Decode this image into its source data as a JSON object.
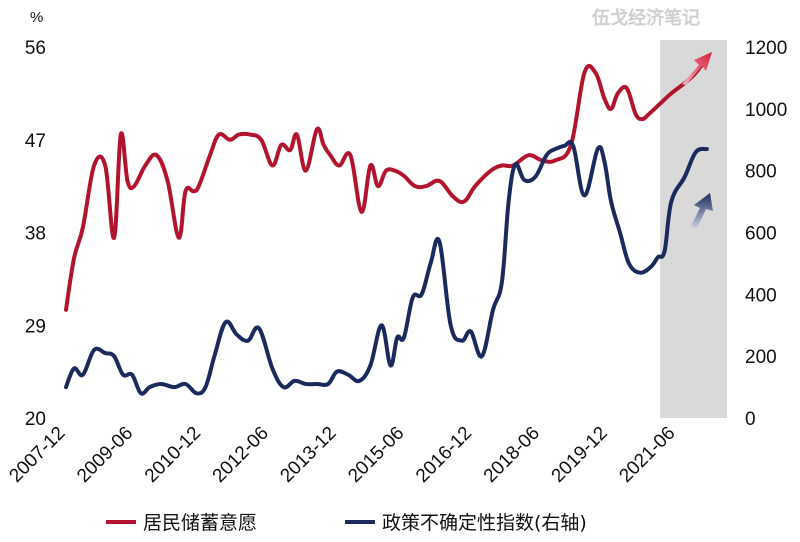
{
  "watermark": "伍戈经济笔记",
  "chart_data": {
    "type": "line",
    "left_axis": {
      "unit": "%",
      "ticks": [
        20,
        29,
        38,
        47,
        56
      ],
      "range": [
        20,
        56
      ]
    },
    "right_axis": {
      "ticks": [
        0,
        200,
        400,
        600,
        800,
        1000,
        1200
      ],
      "range": [
        0,
        1200
      ]
    },
    "x_ticks": [
      "2007-12",
      "2009-06",
      "2010-12",
      "2012-06",
      "2013-12",
      "2015-06",
      "2016-12",
      "2018-06",
      "2019-12",
      "2021-06"
    ],
    "x_range": [
      2007.92,
      2022.75
    ],
    "shaded_region": [
      2021.25,
      2022.75
    ],
    "series": [
      {
        "name": "居民储蓄意愿",
        "axis": "left",
        "color": "#b3142d",
        "x": [
          2007.92,
          2008.1,
          2008.3,
          2008.55,
          2008.8,
          2009.0,
          2009.15,
          2009.3,
          2009.45,
          2009.7,
          2009.95,
          2010.2,
          2010.45,
          2010.6,
          2010.78,
          2010.9,
          2011.15,
          2011.35,
          2011.6,
          2011.8,
          2012.05,
          2012.3,
          2012.55,
          2012.75,
          2012.95,
          2013.1,
          2013.3,
          2013.55,
          2013.7,
          2013.85,
          2014.05,
          2014.3,
          2014.55,
          2014.75,
          2014.92,
          2015.1,
          2015.3,
          2015.5,
          2015.75,
          2016.0,
          2016.3,
          2016.6,
          2016.85,
          2017.1,
          2017.45,
          2017.7,
          2017.95,
          2018.3,
          2018.6,
          2018.9,
          2019.25,
          2019.55,
          2019.8,
          2020.0,
          2020.15,
          2020.3,
          2020.5,
          2020.7,
          2020.85,
          2021.0,
          2021.25,
          2021.5,
          2021.8,
          2022.05,
          2022.3
        ],
        "values": [
          30.5,
          35.5,
          38.5,
          44.5,
          44.5,
          37.5,
          47.5,
          43.0,
          42.5,
          44.5,
          45.5,
          43.0,
          37.5,
          42.0,
          42.0,
          42.5,
          45.5,
          47.5,
          47.0,
          47.5,
          47.5,
          47.0,
          44.5,
          46.5,
          46.0,
          47.5,
          44.0,
          48.0,
          46.5,
          45.5,
          44.5,
          45.5,
          40.0,
          44.5,
          42.5,
          44.0,
          44.0,
          43.5,
          42.5,
          42.5,
          43.0,
          41.5,
          41.0,
          42.5,
          44.0,
          44.5,
          44.5,
          45.5,
          45.0,
          45.0,
          46.5,
          53.5,
          53.5,
          51.0,
          50.0,
          51.5,
          52.0,
          49.5,
          49.0,
          49.5,
          50.5,
          51.5,
          52.5,
          53.5,
          55.0
        ]
      },
      {
        "name": "政策不确定性指数",
        "axis": "right",
        "color": "#1a2a5c",
        "x": [
          2007.92,
          2008.1,
          2008.3,
          2008.55,
          2008.8,
          2009.0,
          2009.2,
          2009.4,
          2009.6,
          2009.8,
          2010.05,
          2010.35,
          2010.6,
          2010.85,
          2011.05,
          2011.25,
          2011.5,
          2011.75,
          2012.0,
          2012.25,
          2012.55,
          2012.8,
          2013.05,
          2013.3,
          2013.55,
          2013.8,
          2014.0,
          2014.25,
          2014.5,
          2014.75,
          2015.0,
          2015.2,
          2015.35,
          2015.5,
          2015.7,
          2015.9,
          2016.1,
          2016.3,
          2016.55,
          2016.8,
          2017.0,
          2017.25,
          2017.5,
          2017.7,
          2017.85,
          2018.0,
          2018.2,
          2018.45,
          2018.7,
          2018.9,
          2019.1,
          2019.3,
          2019.55,
          2019.85,
          2020.0,
          2020.15,
          2020.35,
          2020.55,
          2020.8,
          2021.05,
          2021.2,
          2021.35,
          2021.5,
          2021.8,
          2022.05,
          2022.3
        ],
        "values": [
          100,
          160,
          140,
          220,
          210,
          200,
          140,
          140,
          80,
          100,
          110,
          100,
          110,
          80,
          100,
          200,
          310,
          270,
          250,
          290,
          160,
          100,
          120,
          110,
          110,
          110,
          150,
          140,
          120,
          170,
          300,
          170,
          260,
          260,
          390,
          400,
          500,
          570,
          300,
          250,
          280,
          200,
          350,
          440,
          700,
          820,
          770,
          780,
          850,
          870,
          880,
          880,
          720,
          870,
          830,
          700,
          600,
          500,
          470,
          490,
          520,
          540,
          700,
          780,
          860,
          870
        ]
      }
    ],
    "legend": {
      "position": "bottom",
      "items": [
        "居民储蓄意愿",
        "政策不确定性指数(右轴)"
      ]
    }
  }
}
